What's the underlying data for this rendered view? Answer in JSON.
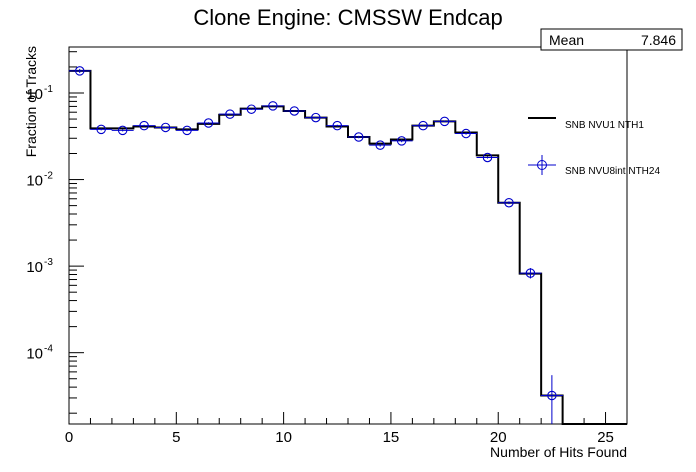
{
  "chart_data": {
    "type": "histogram",
    "title": "Clone Engine: CMSSW Endcap",
    "xlabel": "Number of Hits Found",
    "ylabel": "Fraction of Tracks",
    "x_range": [
      0,
      26
    ],
    "y_range": [
      1.5e-05,
      0.34
    ],
    "y_scale": "log",
    "x_ticks": [
      0,
      5,
      10,
      15,
      20,
      25
    ],
    "y_ticks": [
      {
        "base": "10",
        "exp": "-1",
        "value": 0.1
      },
      {
        "base": "10",
        "exp": "-2",
        "value": 0.01
      },
      {
        "base": "10",
        "exp": "-3",
        "value": 0.001
      },
      {
        "base": "10",
        "exp": "-4",
        "value": 0.0001
      }
    ],
    "stats": {
      "label": "Mean",
      "value": "7.846"
    },
    "bin_edges": [
      0,
      1,
      2,
      3,
      4,
      5,
      6,
      7,
      8,
      9,
      10,
      11,
      12,
      13,
      14,
      15,
      16,
      17,
      18,
      19,
      20,
      21,
      22,
      23,
      24,
      25,
      26
    ],
    "series": [
      {
        "name": "SNB NVU1 NTH1",
        "style": "histogram",
        "color": "#000000",
        "values": [
          0.18,
          0.039,
          0.039,
          0.041,
          0.04,
          0.038,
          0.044,
          0.056,
          0.066,
          0.07,
          0.062,
          0.052,
          0.041,
          0.031,
          0.026,
          0.029,
          0.042,
          0.047,
          0.035,
          0.019,
          0.0054,
          0.00082,
          3.2e-05,
          1.5e-05,
          1.5e-05,
          1.5e-05
        ]
      },
      {
        "name": "SNB NVU8int NTH24",
        "style": "markers",
        "color": "#0000cc",
        "x": [
          0.5,
          1.5,
          2.5,
          3.5,
          4.5,
          5.5,
          6.5,
          7.5,
          8.5,
          9.5,
          10.5,
          11.5,
          12.5,
          13.5,
          14.5,
          15.5,
          16.5,
          17.5,
          18.5,
          19.5,
          20.5,
          21.5,
          22.5
        ],
        "values": [
          0.18,
          0.038,
          0.037,
          0.042,
          0.04,
          0.037,
          0.045,
          0.057,
          0.065,
          0.071,
          0.062,
          0.052,
          0.042,
          0.031,
          0.025,
          0.028,
          0.042,
          0.047,
          0.034,
          0.018,
          0.0054,
          0.00083,
          3.2e-05
        ],
        "err_hi": [
          0.19,
          0.039,
          0.038,
          0.043,
          0.041,
          0.038,
          0.046,
          0.058,
          0.066,
          0.072,
          0.063,
          0.053,
          0.043,
          0.032,
          0.026,
          0.029,
          0.043,
          0.048,
          0.035,
          0.0185,
          0.0056,
          0.00095,
          5.5e-05
        ],
        "err_lo": [
          0.17,
          0.037,
          0.036,
          0.041,
          0.039,
          0.036,
          0.044,
          0.056,
          0.064,
          0.07,
          0.061,
          0.051,
          0.041,
          0.03,
          0.024,
          0.027,
          0.041,
          0.046,
          0.033,
          0.0175,
          0.0052,
          0.00072,
          1.5e-05
        ]
      }
    ]
  }
}
